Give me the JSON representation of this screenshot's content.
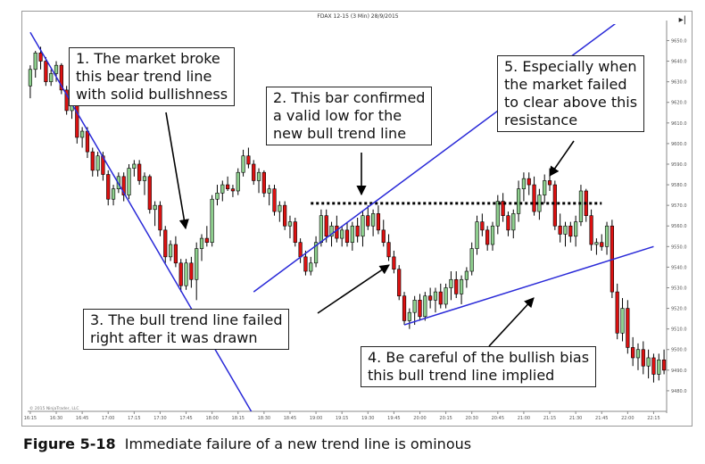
{
  "header": {
    "title": "FDAX 12-15 (3 Min)  28/9/2015",
    "end_button": "▸|"
  },
  "watermark": "© 2015 NinjaTrader, LLC",
  "annotations": [
    {
      "id": "note1",
      "text_lines": [
        "1. The market broke",
        "this bear trend line",
        "with solid bullishness"
      ]
    },
    {
      "id": "note2",
      "text_lines": [
        "2. This bar confirmed",
        "a valid low for the",
        "new bull trend line"
      ]
    },
    {
      "id": "note3",
      "text_lines": [
        "3. The bull trend line failed",
        "right after it was drawn"
      ]
    },
    {
      "id": "note4",
      "text_lines": [
        "4. Be careful of the bullish bias",
        "this bull trend line implied"
      ]
    },
    {
      "id": "note5",
      "text_lines": [
        "5. Especially when",
        "the market failed",
        "to clear above this",
        "resistance"
      ]
    }
  ],
  "caption": {
    "label": "Figure 5-18",
    "text": "Immediate failure of a new trend line is ominous"
  },
  "colors": {
    "up": "#8fd08f",
    "down": "#dd1111",
    "trend": "#2a2ad8",
    "wick": "#000000"
  },
  "chart_data": {
    "type": "candlestick",
    "title": "FDAX 12-15 (3 Min)  28/9/2015",
    "xlabel": "",
    "ylabel": "",
    "x_ticks": [
      "16:15",
      "16:30",
      "16:45",
      "17:00",
      "17:15",
      "17:30",
      "17:45",
      "18:00",
      "18:15",
      "18:30",
      "18:45",
      "19:00",
      "19:15",
      "19:30",
      "19:45",
      "20:00",
      "20:15",
      "20:30",
      "20:45",
      "21:00",
      "21:15",
      "21:30",
      "21:45",
      "22:00",
      "22:15"
    ],
    "y_ticks": [
      "9480.0",
      "9490.0",
      "9500.0",
      "9510.0",
      "9520.0",
      "9530.0",
      "9540.0",
      "9550.0",
      "9560.0",
      "9570.0",
      "9580.0",
      "9590.0",
      "9600.0",
      "9610.0",
      "9620.0",
      "9630.0",
      "9640.0",
      "9650.0"
    ],
    "ylim": [
      9470,
      9658
    ],
    "bars_per_tick": 5,
    "ohlc": [
      [
        9628,
        9638,
        9622,
        9636
      ],
      [
        9636,
        9645,
        9632,
        9644
      ],
      [
        9644,
        9647,
        9636,
        9640
      ],
      [
        9640,
        9642,
        9628,
        9630
      ],
      [
        9630,
        9636,
        9628,
        9634
      ],
      [
        9634,
        9640,
        9630,
        9638
      ],
      [
        9638,
        9639,
        9624,
        9626
      ],
      [
        9626,
        9628,
        9614,
        9616
      ],
      [
        9616,
        9621,
        9612,
        9619
      ],
      [
        9619,
        9621,
        9600,
        9603
      ],
      [
        9603,
        9608,
        9598,
        9606
      ],
      [
        9606,
        9608,
        9593,
        9596
      ],
      [
        9596,
        9598,
        9584,
        9587
      ],
      [
        9587,
        9596,
        9584,
        9594
      ],
      [
        9594,
        9596,
        9582,
        9585
      ],
      [
        9585,
        9587,
        9570,
        9573
      ],
      [
        9573,
        9580,
        9570,
        9578
      ],
      [
        9578,
        9586,
        9576,
        9584
      ],
      [
        9584,
        9586,
        9572,
        9575
      ],
      [
        9575,
        9590,
        9573,
        9588
      ],
      [
        9588,
        9592,
        9584,
        9590
      ],
      [
        9590,
        9592,
        9580,
        9582
      ],
      [
        9582,
        9586,
        9575,
        9584
      ],
      [
        9584,
        9585,
        9566,
        9568
      ],
      [
        9568,
        9572,
        9560,
        9570
      ],
      [
        9570,
        9572,
        9555,
        9558
      ],
      [
        9558,
        9560,
        9542,
        9545
      ],
      [
        9545,
        9553,
        9543,
        9551
      ],
      [
        9551,
        9555,
        9540,
        9542
      ],
      [
        9542,
        9544,
        9528,
        9531
      ],
      [
        9531,
        9544,
        9529,
        9542
      ],
      [
        9542,
        9545,
        9530,
        9534
      ],
      [
        9534,
        9552,
        9524,
        9549
      ],
      [
        9549,
        9556,
        9543,
        9554
      ],
      [
        9554,
        9560,
        9550,
        9552
      ],
      [
        9552,
        9575,
        9550,
        9573
      ],
      [
        9573,
        9580,
        9570,
        9576
      ],
      [
        9576,
        9582,
        9572,
        9580
      ],
      [
        9580,
        9584,
        9577,
        9578
      ],
      [
        9578,
        9580,
        9574,
        9577
      ],
      [
        9577,
        9588,
        9575,
        9586
      ],
      [
        9586,
        9597,
        9584,
        9594
      ],
      [
        9594,
        9598,
        9588,
        9590
      ],
      [
        9590,
        9592,
        9580,
        9582
      ],
      [
        9582,
        9588,
        9576,
        9586
      ],
      [
        9586,
        9587,
        9574,
        9576
      ],
      [
        9576,
        9580,
        9570,
        9578
      ],
      [
        9578,
        9580,
        9565,
        9567
      ],
      [
        9567,
        9572,
        9562,
        9570
      ],
      [
        9570,
        9572,
        9558,
        9560
      ],
      [
        9560,
        9565,
        9554,
        9562
      ],
      [
        9562,
        9564,
        9550,
        9552
      ],
      [
        9552,
        9554,
        9542,
        9545
      ],
      [
        9545,
        9548,
        9536,
        9538
      ],
      [
        9538,
        9545,
        9536,
        9542
      ],
      [
        9542,
        9555,
        9540,
        9552
      ],
      [
        9552,
        9568,
        9550,
        9565
      ],
      [
        9565,
        9568,
        9552,
        9555
      ],
      [
        9555,
        9562,
        9550,
        9560
      ],
      [
        9560,
        9565,
        9552,
        9554
      ],
      [
        9554,
        9560,
        9550,
        9558
      ],
      [
        9558,
        9562,
        9550,
        9552
      ],
      [
        9552,
        9562,
        9548,
        9560
      ],
      [
        9560,
        9564,
        9552,
        9555
      ],
      [
        9555,
        9567,
        9550,
        9565
      ],
      [
        9565,
        9570,
        9558,
        9560
      ],
      [
        9560,
        9568,
        9555,
        9566
      ],
      [
        9566,
        9570,
        9556,
        9558
      ],
      [
        9558,
        9563,
        9550,
        9552
      ],
      [
        9552,
        9556,
        9543,
        9545
      ],
      [
        9545,
        9548,
        9537,
        9539
      ],
      [
        9539,
        9541,
        9524,
        9526
      ],
      [
        9526,
        9528,
        9512,
        9514
      ],
      [
        9514,
        9520,
        9510,
        9518
      ],
      [
        9518,
        9526,
        9512,
        9524
      ],
      [
        9524,
        9527,
        9514,
        9516
      ],
      [
        9516,
        9528,
        9514,
        9526
      ],
      [
        9526,
        9530,
        9520,
        9524
      ],
      [
        9524,
        9530,
        9518,
        9528
      ],
      [
        9528,
        9532,
        9520,
        9522
      ],
      [
        9522,
        9532,
        9520,
        9530
      ],
      [
        9530,
        9538,
        9524,
        9534
      ],
      [
        9534,
        9538,
        9525,
        9527
      ],
      [
        9527,
        9536,
        9522,
        9534
      ],
      [
        9534,
        9540,
        9530,
        9538
      ],
      [
        9538,
        9552,
        9536,
        9549
      ],
      [
        9549,
        9565,
        9546,
        9562
      ],
      [
        9562,
        9566,
        9555,
        9558
      ],
      [
        9558,
        9560,
        9548,
        9551
      ],
      [
        9551,
        9562,
        9548,
        9560
      ],
      [
        9560,
        9575,
        9556,
        9572
      ],
      [
        9572,
        9576,
        9562,
        9565
      ],
      [
        9565,
        9567,
        9555,
        9558
      ],
      [
        9558,
        9568,
        9554,
        9566
      ],
      [
        9566,
        9582,
        9562,
        9578
      ],
      [
        9578,
        9586,
        9572,
        9583
      ],
      [
        9583,
        9586,
        9575,
        9580
      ],
      [
        9580,
        9584,
        9565,
        9567
      ],
      [
        9567,
        9578,
        9563,
        9575
      ],
      [
        9575,
        9585,
        9571,
        9582
      ],
      [
        9582,
        9588,
        9577,
        9580
      ],
      [
        9580,
        9582,
        9558,
        9560
      ],
      [
        9560,
        9566,
        9552,
        9556
      ],
      [
        9556,
        9562,
        9550,
        9560
      ],
      [
        9560,
        9562,
        9552,
        9555
      ],
      [
        9555,
        9565,
        9550,
        9562
      ],
      [
        9562,
        9580,
        9560,
        9577
      ],
      [
        9577,
        9578,
        9562,
        9565
      ],
      [
        9565,
        9568,
        9548,
        9551
      ],
      [
        9551,
        9554,
        9546,
        9552
      ],
      [
        9552,
        9556,
        9548,
        9550
      ],
      [
        9550,
        9562,
        9546,
        9560
      ],
      [
        9560,
        9563,
        9525,
        9528
      ],
      [
        9528,
        9532,
        9505,
        9508
      ],
      [
        9508,
        9525,
        9504,
        9520
      ],
      [
        9520,
        9524,
        9498,
        9501
      ],
      [
        9501,
        9506,
        9492,
        9496
      ],
      [
        9496,
        9503,
        9490,
        9500
      ],
      [
        9500,
        9504,
        9488,
        9492
      ],
      [
        9492,
        9500,
        9486,
        9496
      ],
      [
        9496,
        9498,
        9484,
        9488
      ],
      [
        9488,
        9498,
        9485,
        9495
      ],
      [
        9495,
        9500,
        9488,
        9490
      ]
    ],
    "trend_lines": [
      {
        "name": "bear trend line",
        "from": [
          0,
          9654
        ],
        "to": [
          43,
          9468
        ]
      },
      {
        "name": "first bull trend line",
        "from": [
          43,
          9528
        ],
        "to": [
          120,
          9672
        ]
      },
      {
        "name": "second bull trend line",
        "from": [
          72,
          9512
        ],
        "to": [
          120,
          9550
        ]
      }
    ],
    "resistance_line": {
      "from_bar": 54,
      "to_bar": 110,
      "value": 9571
    }
  }
}
